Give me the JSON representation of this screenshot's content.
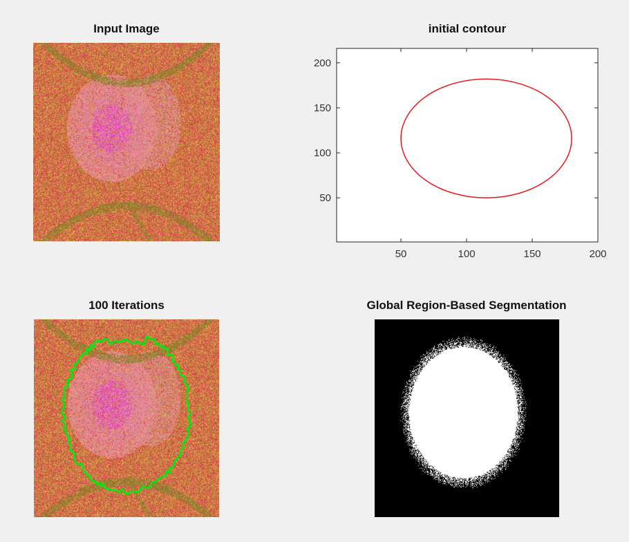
{
  "figure": {
    "input_title": "Input Image",
    "contour_title": "initial contour",
    "iter_title": "100 Iterations",
    "seg_title": "Global Region-Based Segmentation"
  },
  "chart_data": {
    "type": "line",
    "title": "initial contour",
    "xlabel": "",
    "ylabel": "",
    "xlim": [
      1,
      200
    ],
    "ylim": [
      1,
      216
    ],
    "xticks": [
      50,
      100,
      150,
      200
    ],
    "yticks": [
      50,
      100,
      150,
      200
    ],
    "series": [
      {
        "color": "#e41a1c",
        "shape": "ellipse",
        "center": [
          115,
          116
        ],
        "radii": [
          65,
          66
        ]
      }
    ],
    "grid": false
  },
  "colors": {
    "contour": "#e41a1c",
    "segmentation_contour": "#11e011",
    "mask_fg": "#ffffff",
    "mask_bg": "#000000"
  }
}
